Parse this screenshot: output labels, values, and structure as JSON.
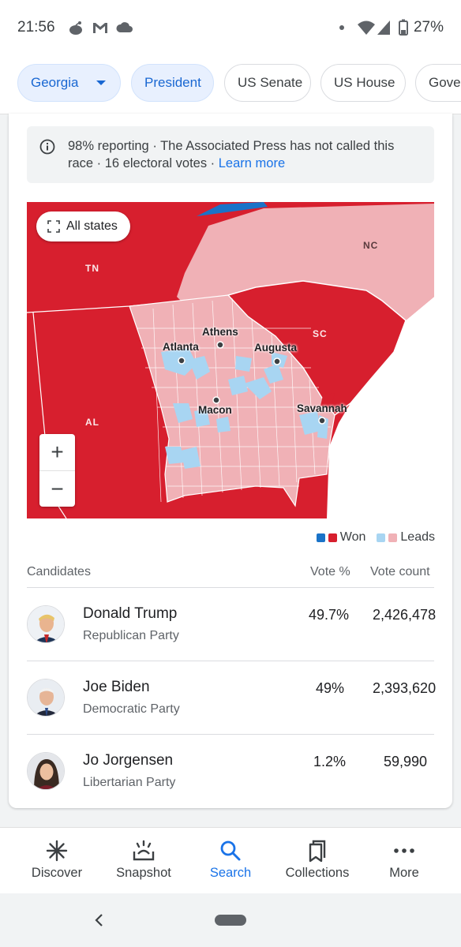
{
  "status_bar": {
    "time": "21:56",
    "battery": "27%"
  },
  "chips": [
    {
      "label": "Georgia",
      "selected": true,
      "dropdown": true
    },
    {
      "label": "President",
      "selected": true
    },
    {
      "label": "US Senate"
    },
    {
      "label": "US House"
    },
    {
      "label": "Gover"
    }
  ],
  "notice": {
    "text": "98% reporting · The Associated Press has not called this race · 16 electoral votes · ",
    "link": "Learn more"
  },
  "map": {
    "all_states_label": "All states",
    "state_labels": [
      "TN",
      "NC",
      "SC",
      "AL"
    ],
    "city_labels": [
      "Athens",
      "Atlanta",
      "Augusta",
      "Macon",
      "Savannah"
    ],
    "zoom_in": "+",
    "zoom_out": "−",
    "colors": {
      "rep_won": "#d71f2e",
      "rep_leads": "#f0b1b6",
      "dem_won": "#1a73c8",
      "dem_leads": "#a8d5f2"
    }
  },
  "legend": {
    "won": "Won",
    "leads": "Leads"
  },
  "table": {
    "headers": {
      "candidates": "Candidates",
      "vote_pct": "Vote %",
      "vote_count": "Vote count"
    },
    "rows": [
      {
        "name": "Donald Trump",
        "party": "Republican Party",
        "pct": "49.7%",
        "count": "2,426,478"
      },
      {
        "name": "Joe Biden",
        "party": "Democratic Party",
        "pct": "49%",
        "count": "2,393,620"
      },
      {
        "name": "Jo Jorgensen",
        "party": "Libertarian Party",
        "pct": "1.2%",
        "count": "59,990"
      }
    ]
  },
  "nav": [
    {
      "label": "Discover",
      "icon": "asterisk-icon"
    },
    {
      "label": "Snapshot",
      "icon": "snapshot-icon"
    },
    {
      "label": "Search",
      "icon": "search-icon",
      "active": true
    },
    {
      "label": "Collections",
      "icon": "bookmarks-icon"
    },
    {
      "label": "More",
      "icon": "more-dots-icon"
    }
  ]
}
